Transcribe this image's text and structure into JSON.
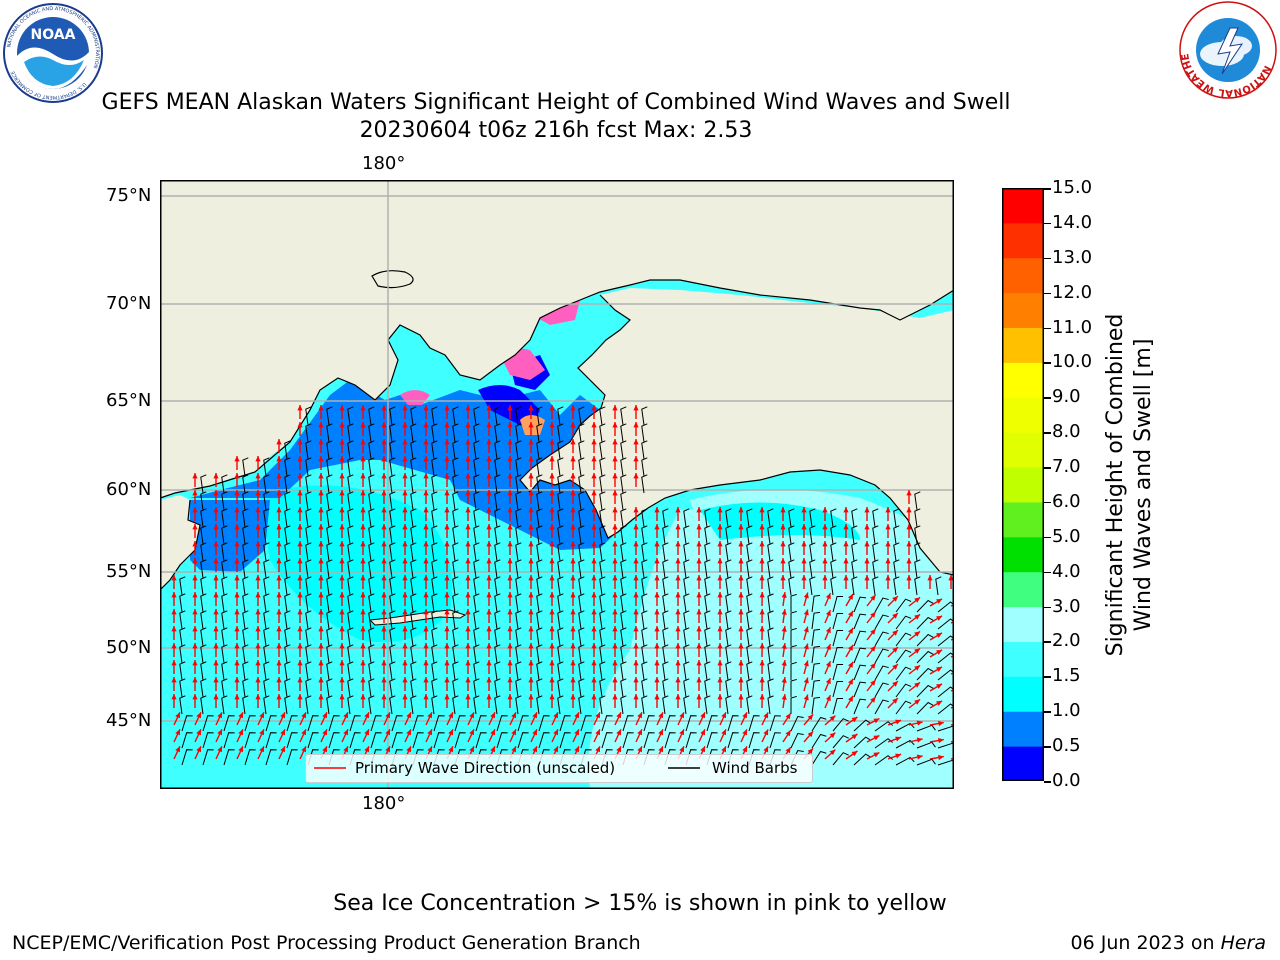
{
  "logos": {
    "noaa": {
      "center_text": "NOAA",
      "ring_text_top": "NATIONAL OCEANIC AND ATMOSPHERIC ADMINISTRATION",
      "ring_text_bottom": "U.S. DEPARTMENT OF COMMERCE"
    },
    "nws": {
      "ring_text": "NATIONAL WEATHER SERVICE"
    }
  },
  "title": {
    "line1": "GEFS MEAN Alaskan Waters Significant Height of Combined Wind Waves and Swell",
    "line2": "20230604 t06z 216h fcst   Max: 2.53"
  },
  "map": {
    "longitude_label_top": "180°",
    "longitude_label_bottom": "180°",
    "latitude_labels": [
      "75°N",
      "70°N",
      "65°N",
      "60°N",
      "55°N",
      "50°N",
      "45°N"
    ],
    "colors": {
      "land": "#efefdf",
      "grid": "#b0b0b0",
      "wave_arrow": "#ff0000",
      "wind_barb": "#000000"
    },
    "legend": {
      "wave_label": "Primary Wave Direction (unscaled)",
      "wind_label": "Wind Barbs"
    }
  },
  "colorbar": {
    "title_line1": "Significant Height of Combined",
    "title_line2": "Wind Waves and Swell [m]",
    "tick_labels": [
      "15.0",
      "14.0",
      "13.0",
      "12.0",
      "11.0",
      "10.0",
      "9.0",
      "8.0",
      "7.0",
      "6.0",
      "5.0",
      "4.0",
      "3.0",
      "2.0",
      "1.5",
      "1.0",
      "0.5",
      "0.0"
    ],
    "bins": [
      {
        "from": 0.0,
        "to": 0.5,
        "color": "#0000ff"
      },
      {
        "from": 0.5,
        "to": 1.0,
        "color": "#0080ff"
      },
      {
        "from": 1.0,
        "to": 1.5,
        "color": "#00ffff"
      },
      {
        "from": 1.5,
        "to": 2.0,
        "color": "#40ffff"
      },
      {
        "from": 2.0,
        "to": 3.0,
        "color": "#a0ffff"
      },
      {
        "from": 3.0,
        "to": 4.0,
        "color": "#40ff80"
      },
      {
        "from": 4.0,
        "to": 5.0,
        "color": "#00e000"
      },
      {
        "from": 5.0,
        "to": 6.0,
        "color": "#60f020"
      },
      {
        "from": 6.0,
        "to": 7.0,
        "color": "#c0ff00"
      },
      {
        "from": 7.0,
        "to": 8.0,
        "color": "#e0ff00"
      },
      {
        "from": 8.0,
        "to": 9.0,
        "color": "#f0ff00"
      },
      {
        "from": 9.0,
        "to": 10.0,
        "color": "#ffff00"
      },
      {
        "from": 10.0,
        "to": 11.0,
        "color": "#ffc000"
      },
      {
        "from": 11.0,
        "to": 12.0,
        "color": "#ff8000"
      },
      {
        "from": 12.0,
        "to": 13.0,
        "color": "#ff6000"
      },
      {
        "from": 13.0,
        "to": 14.0,
        "color": "#ff3000"
      },
      {
        "from": 14.0,
        "to": 15.0,
        "color": "#ff0000"
      }
    ]
  },
  "footer": {
    "sea_ice_note": "Sea Ice Concentration > 15% is shown in pink to yellow",
    "producer": "NCEP/EMC/Verification Post Processing Product Generation Branch",
    "date": "06 Jun 2023 on ",
    "machine": "Hera"
  }
}
